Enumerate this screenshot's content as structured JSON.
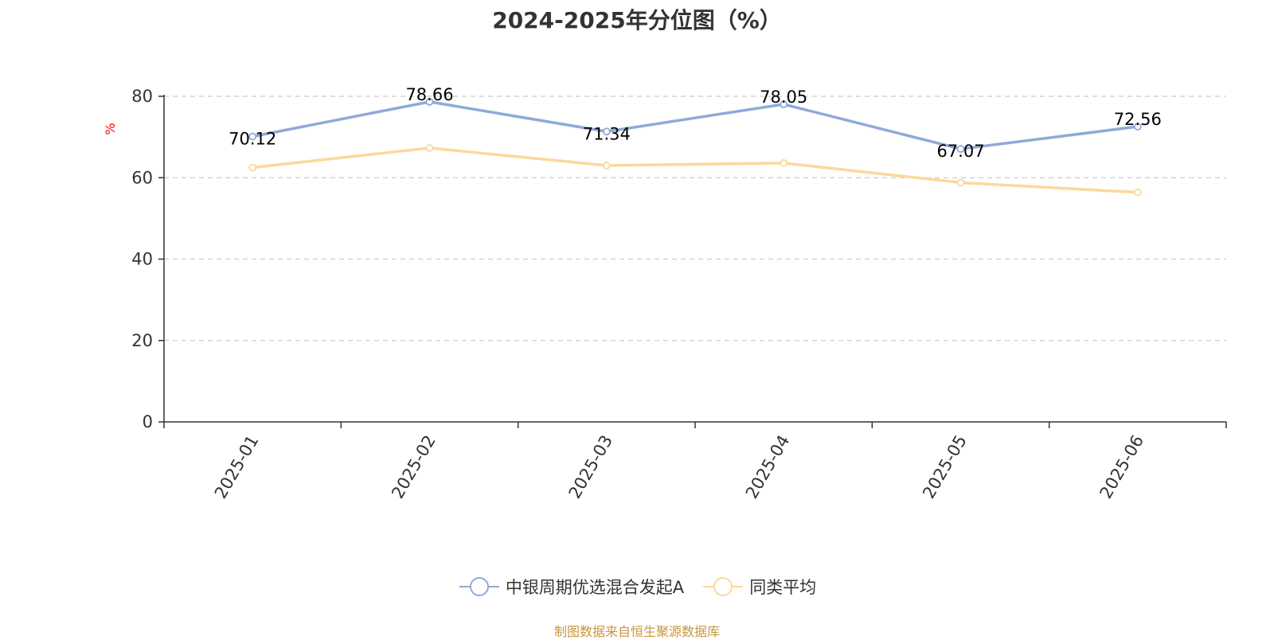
{
  "chart_data": {
    "type": "line",
    "title": "2024-2025年分位图（%）",
    "ylabel": "%",
    "xlabel": "",
    "categories": [
      "2025-01",
      "2025-02",
      "2025-03",
      "2025-04",
      "2025-05",
      "2025-06"
    ],
    "ylim": [
      0,
      80
    ],
    "yticks": [
      0,
      20,
      40,
      60,
      80
    ],
    "grid": true,
    "legend_position": "bottom",
    "series": [
      {
        "name": "中银周期优选混合发起A",
        "values": [
          70.12,
          78.66,
          71.34,
          78.05,
          67.07,
          72.56
        ],
        "labels": [
          "70.12",
          "78.66",
          "71.34",
          "78.05",
          "67.07",
          "72.56"
        ],
        "color": "#8eaad9"
      },
      {
        "name": "同类平均",
        "values": [
          62.5,
          67.3,
          63.0,
          63.6,
          58.8,
          56.4
        ],
        "color": "#fdd89b"
      }
    ]
  },
  "source_note": "制图数据来自恒生聚源数据库"
}
